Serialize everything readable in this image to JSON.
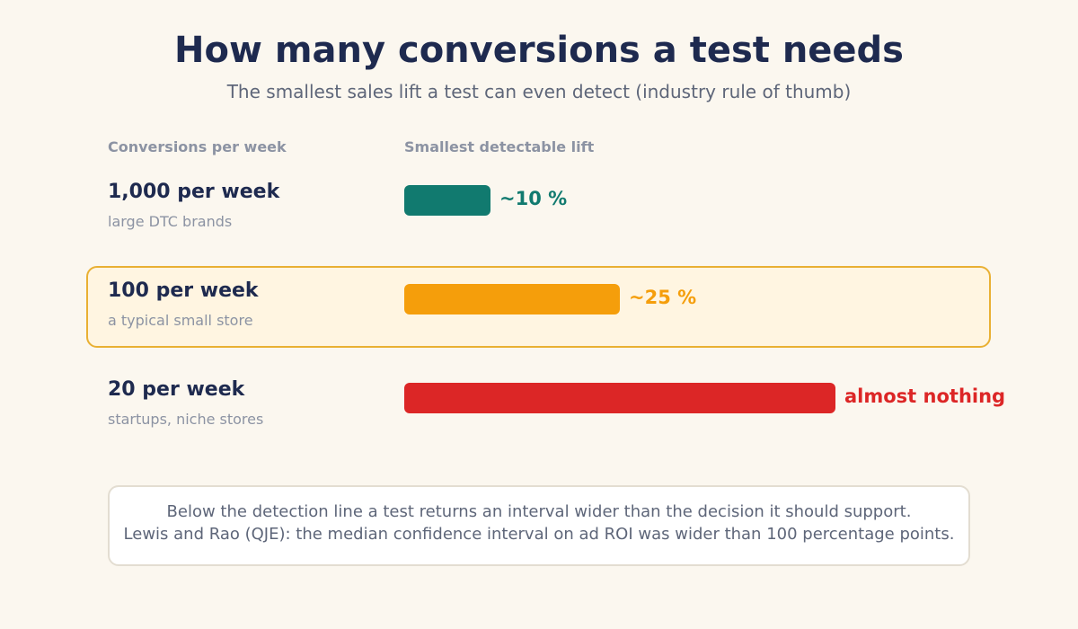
{
  "header": {
    "title": "How many conversions a test needs",
    "subtitle": "The smallest sales lift a test can even detect (industry rule of thumb)"
  },
  "chart_data": {
    "type": "bar",
    "orientation": "horizontal",
    "columns": {
      "category_header": "Conversions per week",
      "value_header": "Smallest detectable lift"
    },
    "categories": [
      "1,000 per week",
      "100 per week",
      "20 per week"
    ],
    "rows": [
      {
        "label": "1,000 per week",
        "sublabel": "large DTC brands",
        "value": 10,
        "value_label": "~10 %",
        "color": "#117a6f",
        "highlighted": false
      },
      {
        "label": "100 per week",
        "sublabel": "a typical small store",
        "value": 25,
        "value_label": "~25 %",
        "color": "#f59e0b",
        "highlighted": true
      },
      {
        "label": "20 per week",
        "sublabel": "startups, niche stores",
        "value": 50,
        "value_label": "almost nothing",
        "color": "#dc2626",
        "highlighted": false
      }
    ],
    "xlim": [
      0,
      50
    ],
    "grid": false,
    "legend": "none"
  },
  "note": {
    "lines": [
      "Below the detection line a test returns an interval wider than the decision it should support.",
      "Lewis and Rao (QJE): the median confidence interval on ad ROI was wider than 100 percentage points."
    ]
  },
  "colors": {
    "highlight_border": "#e9b033",
    "highlight_fill": "#fff5e1",
    "text_dark": "#1e2a4f",
    "text_muted": "#8c93a3"
  }
}
